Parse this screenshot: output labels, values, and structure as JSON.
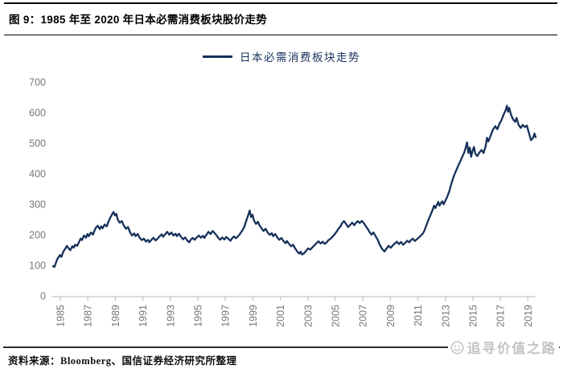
{
  "figure": {
    "title": "图 9：1985 年至 2020 年日本必需消费板块股价走势",
    "source": "资料来源：Bloomberg、国信证券经济研究所整理",
    "watermark": "追寻价值之路"
  },
  "colors": {
    "line": "#16305a",
    "axis": "#c6c6c6",
    "axis_text": "#767676",
    "title_text": "#000000",
    "watermark": "#c3c3c3"
  },
  "chart_data": {
    "type": "line",
    "title": "",
    "xlabel": "",
    "ylabel": "",
    "grid": false,
    "legend_position": "top-center",
    "ylim": [
      0,
      700
    ],
    "y_ticks": [
      0,
      100,
      200,
      300,
      400,
      500,
      600,
      700
    ],
    "x_ticks": [
      1985,
      1987,
      1989,
      1991,
      1993,
      1995,
      1997,
      1999,
      2001,
      2003,
      2005,
      2007,
      2009,
      2011,
      2013,
      2015,
      2017,
      2019
    ],
    "x_range": [
      1985,
      2020.2
    ],
    "series": [
      {
        "name": "日本必需消费板块走势",
        "color": "#16305a",
        "points": [
          [
            1985.0,
            100
          ],
          [
            1985.1,
            97
          ],
          [
            1985.2,
            110
          ],
          [
            1985.3,
            122
          ],
          [
            1985.5,
            136
          ],
          [
            1985.6,
            130
          ],
          [
            1985.75,
            148
          ],
          [
            1985.9,
            158
          ],
          [
            1986.0,
            166
          ],
          [
            1986.1,
            160
          ],
          [
            1986.25,
            152
          ],
          [
            1986.4,
            165
          ],
          [
            1986.5,
            160
          ],
          [
            1986.6,
            170
          ],
          [
            1986.75,
            166
          ],
          [
            1986.9,
            180
          ],
          [
            1987.0,
            190
          ],
          [
            1987.1,
            185
          ],
          [
            1987.25,
            200
          ],
          [
            1987.4,
            193
          ],
          [
            1987.5,
            205
          ],
          [
            1987.6,
            198
          ],
          [
            1987.75,
            210
          ],
          [
            1987.9,
            203
          ],
          [
            1988.0,
            215
          ],
          [
            1988.1,
            225
          ],
          [
            1988.25,
            232
          ],
          [
            1988.4,
            221
          ],
          [
            1988.5,
            230
          ],
          [
            1988.6,
            224
          ],
          [
            1988.75,
            236
          ],
          [
            1988.9,
            230
          ],
          [
            1989.0,
            243
          ],
          [
            1989.15,
            258
          ],
          [
            1989.3,
            270
          ],
          [
            1989.4,
            277
          ],
          [
            1989.5,
            266
          ],
          [
            1989.6,
            271
          ],
          [
            1989.7,
            252
          ],
          [
            1989.85,
            242
          ],
          [
            1990.0,
            247
          ],
          [
            1990.15,
            232
          ],
          [
            1990.3,
            222
          ],
          [
            1990.45,
            228
          ],
          [
            1990.6,
            210
          ],
          [
            1990.75,
            200
          ],
          [
            1990.9,
            207
          ],
          [
            1991.0,
            198
          ],
          [
            1991.15,
            205
          ],
          [
            1991.3,
            193
          ],
          [
            1991.45,
            185
          ],
          [
            1991.6,
            190
          ],
          [
            1991.75,
            180
          ],
          [
            1991.9,
            186
          ],
          [
            1992.0,
            178
          ],
          [
            1992.15,
            186
          ],
          [
            1992.3,
            193
          ],
          [
            1992.45,
            184
          ],
          [
            1992.6,
            190
          ],
          [
            1992.75,
            198
          ],
          [
            1992.9,
            204
          ],
          [
            1993.0,
            196
          ],
          [
            1993.15,
            204
          ],
          [
            1993.3,
            212
          ],
          [
            1993.45,
            203
          ],
          [
            1993.6,
            210
          ],
          [
            1993.75,
            200
          ],
          [
            1993.9,
            206
          ],
          [
            1994.0,
            198
          ],
          [
            1994.15,
            206
          ],
          [
            1994.3,
            196
          ],
          [
            1994.45,
            188
          ],
          [
            1994.6,
            194
          ],
          [
            1994.75,
            184
          ],
          [
            1994.9,
            178
          ],
          [
            1995.0,
            186
          ],
          [
            1995.15,
            192
          ],
          [
            1995.3,
            186
          ],
          [
            1995.45,
            194
          ],
          [
            1995.6,
            200
          ],
          [
            1995.75,
            193
          ],
          [
            1995.9,
            199
          ],
          [
            1996.0,
            192
          ],
          [
            1996.15,
            203
          ],
          [
            1996.3,
            212
          ],
          [
            1996.45,
            205
          ],
          [
            1996.6,
            215
          ],
          [
            1996.75,
            208
          ],
          [
            1996.9,
            200
          ],
          [
            1997.0,
            193
          ],
          [
            1997.15,
            186
          ],
          [
            1997.3,
            194
          ],
          [
            1997.45,
            187
          ],
          [
            1997.6,
            195
          ],
          [
            1997.75,
            189
          ],
          [
            1997.9,
            183
          ],
          [
            1998.0,
            190
          ],
          [
            1998.15,
            197
          ],
          [
            1998.3,
            191
          ],
          [
            1998.45,
            198
          ],
          [
            1998.6,
            206
          ],
          [
            1998.75,
            216
          ],
          [
            1998.9,
            228
          ],
          [
            1999.0,
            242
          ],
          [
            1999.15,
            262
          ],
          [
            1999.3,
            282
          ],
          [
            1999.4,
            260
          ],
          [
            1999.5,
            268
          ],
          [
            1999.6,
            250
          ],
          [
            1999.75,
            238
          ],
          [
            1999.9,
            245
          ],
          [
            2000.0,
            234
          ],
          [
            2000.15,
            224
          ],
          [
            2000.3,
            215
          ],
          [
            2000.45,
            222
          ],
          [
            2000.6,
            210
          ],
          [
            2000.75,
            202
          ],
          [
            2000.9,
            208
          ],
          [
            2001.0,
            198
          ],
          [
            2001.15,
            205
          ],
          [
            2001.3,
            194
          ],
          [
            2001.45,
            186
          ],
          [
            2001.6,
            192
          ],
          [
            2001.75,
            182
          ],
          [
            2001.9,
            175
          ],
          [
            2002.0,
            182
          ],
          [
            2002.15,
            173
          ],
          [
            2002.3,
            165
          ],
          [
            2002.45,
            170
          ],
          [
            2002.6,
            158
          ],
          [
            2002.75,
            148
          ],
          [
            2002.9,
            141
          ],
          [
            2003.0,
            147
          ],
          [
            2003.1,
            138
          ],
          [
            2003.25,
            142
          ],
          [
            2003.4,
            150
          ],
          [
            2003.55,
            158
          ],
          [
            2003.7,
            154
          ],
          [
            2003.85,
            161
          ],
          [
            2004.0,
            168
          ],
          [
            2004.15,
            175
          ],
          [
            2004.3,
            181
          ],
          [
            2004.45,
            174
          ],
          [
            2004.6,
            180
          ],
          [
            2004.75,
            173
          ],
          [
            2004.9,
            178
          ],
          [
            2005.0,
            184
          ],
          [
            2005.15,
            189
          ],
          [
            2005.3,
            195
          ],
          [
            2005.45,
            203
          ],
          [
            2005.6,
            212
          ],
          [
            2005.75,
            222
          ],
          [
            2005.9,
            230
          ],
          [
            2006.0,
            240
          ],
          [
            2006.15,
            247
          ],
          [
            2006.3,
            238
          ],
          [
            2006.45,
            228
          ],
          [
            2006.6,
            235
          ],
          [
            2006.75,
            242
          ],
          [
            2006.9,
            234
          ],
          [
            2007.0,
            240
          ],
          [
            2007.15,
            247
          ],
          [
            2007.3,
            241
          ],
          [
            2007.45,
            248
          ],
          [
            2007.6,
            240
          ],
          [
            2007.75,
            230
          ],
          [
            2007.9,
            220
          ],
          [
            2008.0,
            212
          ],
          [
            2008.15,
            203
          ],
          [
            2008.3,
            210
          ],
          [
            2008.45,
            198
          ],
          [
            2008.6,
            186
          ],
          [
            2008.75,
            170
          ],
          [
            2008.9,
            158
          ],
          [
            2009.0,
            152
          ],
          [
            2009.1,
            148
          ],
          [
            2009.25,
            158
          ],
          [
            2009.4,
            166
          ],
          [
            2009.55,
            160
          ],
          [
            2009.7,
            168
          ],
          [
            2009.85,
            174
          ],
          [
            2010.0,
            180
          ],
          [
            2010.15,
            172
          ],
          [
            2010.3,
            179
          ],
          [
            2010.45,
            170
          ],
          [
            2010.6,
            176
          ],
          [
            2010.75,
            183
          ],
          [
            2010.9,
            178
          ],
          [
            2011.0,
            184
          ],
          [
            2011.15,
            190
          ],
          [
            2011.3,
            182
          ],
          [
            2011.45,
            188
          ],
          [
            2011.6,
            194
          ],
          [
            2011.75,
            200
          ],
          [
            2011.9,
            208
          ],
          [
            2012.0,
            216
          ],
          [
            2012.15,
            235
          ],
          [
            2012.3,
            252
          ],
          [
            2012.45,
            268
          ],
          [
            2012.6,
            285
          ],
          [
            2012.7,
            298
          ],
          [
            2012.8,
            290
          ],
          [
            2012.9,
            300
          ],
          [
            2013.0,
            310
          ],
          [
            2013.1,
            298
          ],
          [
            2013.2,
            306
          ],
          [
            2013.3,
            312
          ],
          [
            2013.4,
            302
          ],
          [
            2013.5,
            312
          ],
          [
            2013.65,
            326
          ],
          [
            2013.8,
            344
          ],
          [
            2013.9,
            360
          ],
          [
            2014.0,
            376
          ],
          [
            2014.15,
            396
          ],
          [
            2014.3,
            412
          ],
          [
            2014.45,
            428
          ],
          [
            2014.6,
            442
          ],
          [
            2014.75,
            458
          ],
          [
            2014.9,
            472
          ],
          [
            2015.0,
            488
          ],
          [
            2015.1,
            505
          ],
          [
            2015.2,
            470
          ],
          [
            2015.3,
            488
          ],
          [
            2015.4,
            458
          ],
          [
            2015.5,
            478
          ],
          [
            2015.6,
            490
          ],
          [
            2015.7,
            468
          ],
          [
            2015.85,
            460
          ],
          [
            2016.0,
            472
          ],
          [
            2016.15,
            480
          ],
          [
            2016.3,
            470
          ],
          [
            2016.45,
            492
          ],
          [
            2016.55,
            520
          ],
          [
            2016.65,
            508
          ],
          [
            2016.8,
            525
          ],
          [
            2016.9,
            538
          ],
          [
            2017.0,
            548
          ],
          [
            2017.15,
            558
          ],
          [
            2017.3,
            548
          ],
          [
            2017.45,
            565
          ],
          [
            2017.6,
            578
          ],
          [
            2017.75,
            595
          ],
          [
            2017.9,
            610
          ],
          [
            2018.0,
            625
          ],
          [
            2018.08,
            605
          ],
          [
            2018.17,
            618
          ],
          [
            2018.3,
            595
          ],
          [
            2018.45,
            580
          ],
          [
            2018.6,
            572
          ],
          [
            2018.7,
            585
          ],
          [
            2018.85,
            562
          ],
          [
            2019.0,
            552
          ],
          [
            2019.15,
            562
          ],
          [
            2019.3,
            555
          ],
          [
            2019.45,
            560
          ],
          [
            2019.6,
            535
          ],
          [
            2019.75,
            512
          ],
          [
            2019.9,
            520
          ],
          [
            2020.0,
            534
          ],
          [
            2020.1,
            522
          ]
        ]
      }
    ]
  }
}
